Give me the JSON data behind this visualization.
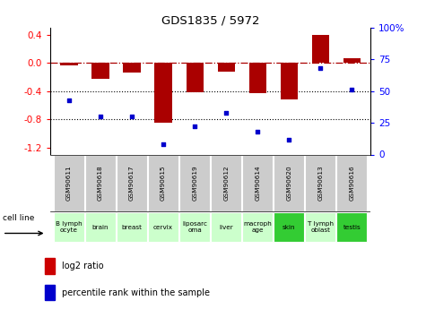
{
  "title": "GDS1835 / 5972",
  "samples": [
    "GSM90611",
    "GSM90618",
    "GSM90617",
    "GSM90615",
    "GSM90619",
    "GSM90612",
    "GSM90614",
    "GSM90620",
    "GSM90613",
    "GSM90616"
  ],
  "cell_lines": [
    "B lymph\nocyte",
    "brain",
    "breast",
    "cervix",
    "liposarc\noma",
    "liver",
    "macroph\nage",
    "skin",
    "T lymph\noblast",
    "testis"
  ],
  "cell_line_colors": [
    "#ccffcc",
    "#ccffcc",
    "#ccffcc",
    "#ccffcc",
    "#ccffcc",
    "#ccffcc",
    "#ccffcc",
    "#33cc33",
    "#ccffcc",
    "#33cc33"
  ],
  "log2_ratio": [
    -0.04,
    -0.22,
    -0.13,
    -0.85,
    -0.42,
    -0.12,
    -0.43,
    -0.52,
    0.4,
    0.07
  ],
  "pct_rank": [
    43,
    30,
    30,
    8,
    22,
    33,
    18,
    12,
    68,
    51
  ],
  "left_ylim": [
    -1.3,
    0.5
  ],
  "right_ylim": [
    0,
    100
  ],
  "left_yticks": [
    0.4,
    0.0,
    -0.4,
    -0.8,
    -1.2
  ],
  "right_yticks": [
    100,
    75,
    50,
    25,
    0
  ],
  "dotted_lines": [
    -0.4,
    -0.8
  ],
  "bar_color": "#AA0000",
  "dot_color": "#0000CC",
  "legend_bar_color": "#CC0000",
  "legend_dot_color": "#0000CC"
}
